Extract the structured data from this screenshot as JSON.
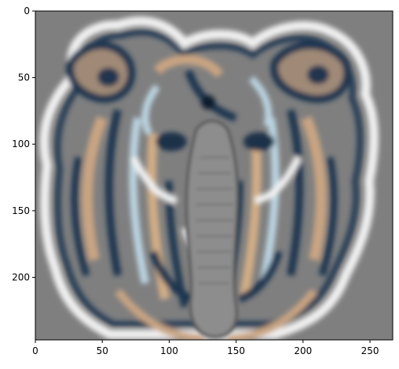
{
  "axes": {
    "x_ticks": [
      {
        "value": 0,
        "label": "0"
      },
      {
        "value": 50,
        "label": "50"
      },
      {
        "value": 100,
        "label": "100"
      },
      {
        "value": 150,
        "label": "150"
      },
      {
        "value": 200,
        "label": "200"
      },
      {
        "value": 250,
        "label": "250"
      }
    ],
    "y_ticks": [
      {
        "value": 0,
        "label": "0"
      },
      {
        "value": 50,
        "label": "50"
      },
      {
        "value": 100,
        "label": "100"
      },
      {
        "value": 150,
        "label": "150"
      },
      {
        "value": 200,
        "label": "200"
      }
    ],
    "x_range": [
      0,
      267
    ],
    "y_range": [
      0,
      247
    ],
    "y_inverted": true
  },
  "image": {
    "subject": "stylized lion/elephant face with blurred, high-pass filtered colorful strokes on gray background",
    "palette": {
      "background": "#7f7f7f",
      "navy": "#1f3550",
      "tan": "#c7a27f",
      "light_blue": "#bcd6e3",
      "white": "#f2f2f2",
      "trunk": "#8e8e8e"
    }
  }
}
